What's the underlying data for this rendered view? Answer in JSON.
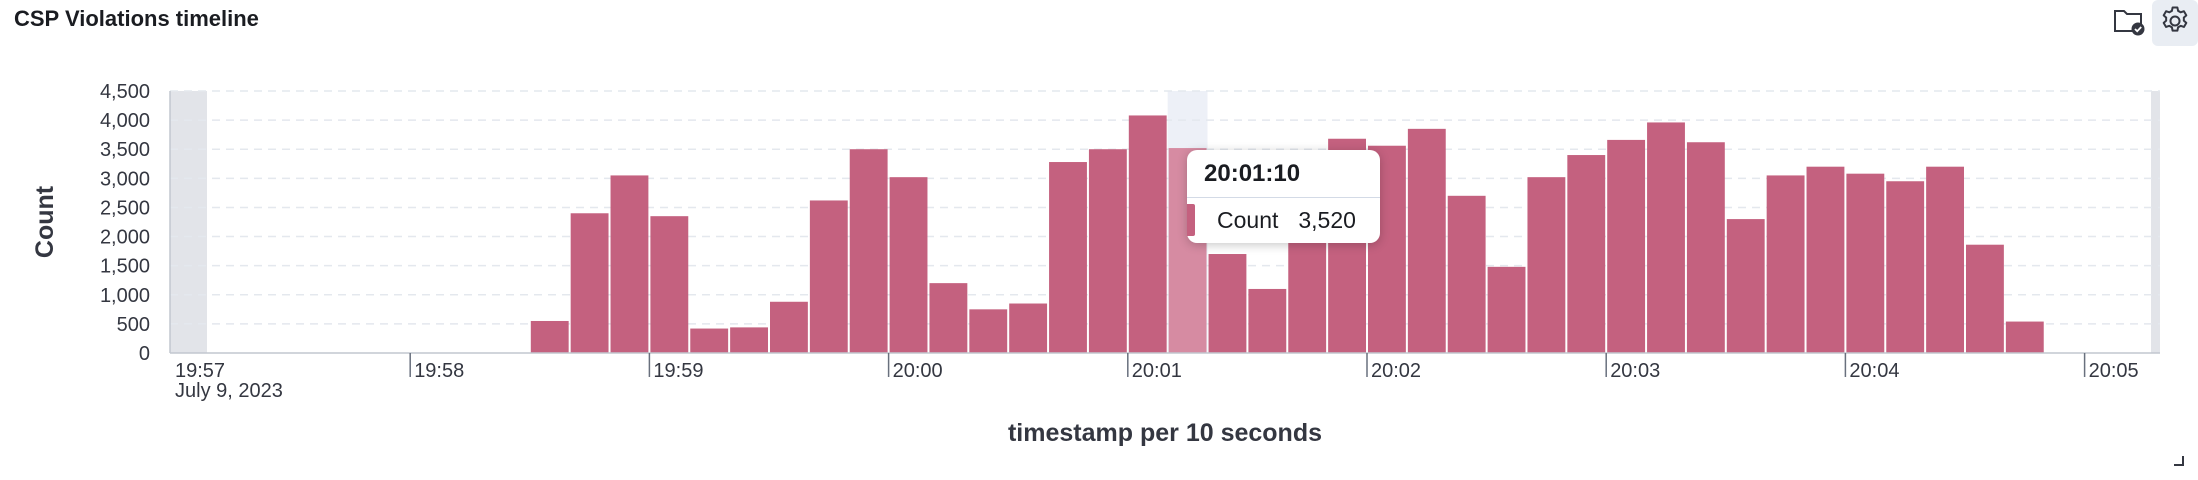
{
  "panel": {
    "title": "CSP Violations timeline"
  },
  "toolbar": {
    "icons": [
      "folder-check-icon",
      "gear-icon"
    ]
  },
  "colors": {
    "bar": "#c4617f",
    "bar_highlight": "#d68ba2",
    "grid": "#e4e8ee",
    "axis": "#c2c7cf",
    "out_of_range": "#e2e4e9",
    "highlight_band": "#edf0f7"
  },
  "tooltip": {
    "title": "20:01:10",
    "label": "Count",
    "value": "3,520"
  },
  "chart_data": {
    "type": "bar",
    "xlabel": "timestamp per 10 seconds",
    "ylabel": "Count",
    "ylim": [
      0,
      4500
    ],
    "yticks": [
      0,
      500,
      1000,
      1500,
      2000,
      2500,
      3000,
      3500,
      4000,
      4500
    ],
    "ytick_labels": [
      "0",
      "500",
      "1,000",
      "1,500",
      "2,000",
      "2,500",
      "3,000",
      "3,500",
      "4,000",
      "4,500"
    ],
    "xticks": [
      "19:57",
      "19:58",
      "19:59",
      "20:00",
      "20:01",
      "20:02",
      "20:03",
      "20:04",
      "20:05"
    ],
    "xtick_sublabel": "July 9, 2023",
    "grid": "horizontal dashed",
    "highlighted_category": "20:01:10",
    "categories": [
      "19:58:30",
      "19:58:40",
      "19:58:50",
      "19:59:00",
      "19:59:10",
      "19:59:20",
      "19:59:30",
      "19:59:40",
      "19:59:50",
      "20:00:00",
      "20:00:10",
      "20:00:20",
      "20:00:30",
      "20:00:40",
      "20:00:50",
      "20:01:00",
      "20:01:10",
      "20:01:20",
      "20:01:30",
      "20:01:40",
      "20:01:50",
      "20:02:00",
      "20:02:10",
      "20:02:20",
      "20:02:30",
      "20:02:40",
      "20:02:50",
      "20:03:00",
      "20:03:10",
      "20:03:20",
      "20:03:30",
      "20:03:40",
      "20:03:50",
      "20:04:00",
      "20:04:10",
      "20:04:20",
      "20:04:30",
      "20:04:40"
    ],
    "values": [
      550,
      2400,
      3050,
      2350,
      420,
      440,
      880,
      2620,
      3500,
      3020,
      1200,
      750,
      850,
      3280,
      3500,
      4080,
      3520,
      1700,
      1100,
      2650,
      3680,
      3560,
      3850,
      2700,
      1480,
      3020,
      3400,
      3660,
      3960,
      3620,
      2300,
      3050,
      3200,
      3080,
      2950,
      3200,
      1860,
      540
    ]
  }
}
